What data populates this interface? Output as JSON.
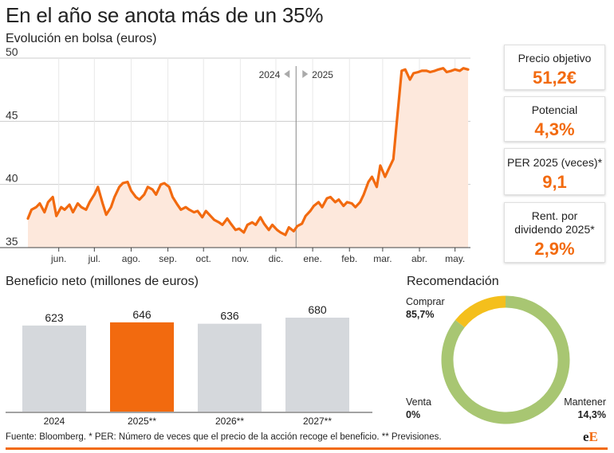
{
  "header": {
    "title": "En el año se anota más de un 35%",
    "subtitle": "Evolución en bolsa (euros)"
  },
  "cards": [
    {
      "label_lines": [
        "Precio objetivo"
      ],
      "value": "51,2€"
    },
    {
      "label_lines": [
        "Potencial"
      ],
      "value": "4,3%"
    },
    {
      "label_lines": [
        "PER 2025 (veces)*"
      ],
      "value": "9,1"
    },
    {
      "label_lines": [
        "Rent. por",
        "dividendo 2025*"
      ],
      "value": "2,9%"
    }
  ],
  "sections": {
    "profit_title": "Beneficio neto (millones de euros)",
    "recommendation_title": "Recomendación"
  },
  "footer": {
    "source": "Fuente: Bloomberg. * PER: Número de veces que el precio de la acción recoge el beneficio. ** Previsiones.",
    "logo_e1": "e",
    "logo_e2": "E"
  },
  "colors": {
    "accent": "#f26a0f",
    "area_fill": "#fde8dc",
    "bar_gray": "#d5d8dc",
    "donut_green": "#a8c672",
    "donut_yellow": "#f4bf1c"
  },
  "chart_data": [
    {
      "type": "area",
      "ylim": [
        35,
        50
      ],
      "yticks": [
        35,
        40,
        45,
        50
      ],
      "xlim": [
        "2024-05-20",
        "2025-05-28"
      ],
      "xticks": [
        {
          "label": "jun.",
          "date": "2024-06-15"
        },
        {
          "label": "jul.",
          "date": "2024-07-15"
        },
        {
          "label": "ago.",
          "date": "2024-08-15"
        },
        {
          "label": "sep.",
          "date": "2024-09-15"
        },
        {
          "label": "oct.",
          "date": "2024-10-15"
        },
        {
          "label": "nov.",
          "date": "2024-11-15"
        },
        {
          "label": "dic.",
          "date": "2024-12-15"
        },
        {
          "label": "ene.",
          "date": "2025-01-15"
        },
        {
          "label": "feb.",
          "date": "2025-02-15"
        },
        {
          "label": "mar.",
          "date": "2025-03-15"
        },
        {
          "label": "abr.",
          "date": "2025-04-15"
        },
        {
          "label": "may.",
          "date": "2025-05-15"
        }
      ],
      "year_divider": {
        "date": "2025-01-01",
        "left_label": "2024",
        "right_label": "2025"
      },
      "x": [
        "2024-05-20",
        "2024-05-23",
        "2024-05-27",
        "2024-05-30",
        "2024-06-03",
        "2024-06-06",
        "2024-06-10",
        "2024-06-13",
        "2024-06-17",
        "2024-06-20",
        "2024-06-24",
        "2024-06-27",
        "2024-07-01",
        "2024-07-04",
        "2024-07-08",
        "2024-07-11",
        "2024-07-15",
        "2024-07-18",
        "2024-07-22",
        "2024-07-25",
        "2024-07-29",
        "2024-08-01",
        "2024-08-05",
        "2024-08-08",
        "2024-08-12",
        "2024-08-15",
        "2024-08-19",
        "2024-08-22",
        "2024-08-26",
        "2024-08-29",
        "2024-09-02",
        "2024-09-05",
        "2024-09-09",
        "2024-09-12",
        "2024-09-16",
        "2024-09-19",
        "2024-09-23",
        "2024-09-26",
        "2024-09-30",
        "2024-10-03",
        "2024-10-07",
        "2024-10-10",
        "2024-10-14",
        "2024-10-17",
        "2024-10-21",
        "2024-10-24",
        "2024-10-28",
        "2024-10-31",
        "2024-11-04",
        "2024-11-07",
        "2024-11-11",
        "2024-11-14",
        "2024-11-18",
        "2024-11-21",
        "2024-11-25",
        "2024-11-28",
        "2024-12-02",
        "2024-12-05",
        "2024-12-09",
        "2024-12-12",
        "2024-12-16",
        "2024-12-19",
        "2024-12-23",
        "2024-12-26",
        "2024-12-30",
        "2025-01-02",
        "2025-01-06",
        "2025-01-09",
        "2025-01-13",
        "2025-01-16",
        "2025-01-20",
        "2025-01-23",
        "2025-01-27",
        "2025-01-30",
        "2025-02-03",
        "2025-02-06",
        "2025-02-10",
        "2025-02-13",
        "2025-02-17",
        "2025-02-20",
        "2025-02-24",
        "2025-02-27",
        "2025-03-03",
        "2025-03-06",
        "2025-03-10",
        "2025-03-13",
        "2025-03-17",
        "2025-03-20",
        "2025-03-24",
        "2025-03-27",
        "2025-03-31",
        "2025-04-03",
        "2025-04-07",
        "2025-04-10",
        "2025-04-14",
        "2025-04-17",
        "2025-04-21",
        "2025-04-24",
        "2025-04-28",
        "2025-05-01",
        "2025-05-05",
        "2025-05-08",
        "2025-05-12",
        "2025-05-15",
        "2025-05-19",
        "2025-05-22",
        "2025-05-26"
      ],
      "y": [
        37.3,
        38.0,
        38.2,
        38.5,
        37.8,
        38.6,
        39.0,
        37.5,
        38.2,
        38.0,
        38.4,
        37.8,
        38.5,
        38.2,
        38.0,
        38.6,
        39.2,
        39.8,
        38.5,
        37.6,
        38.2,
        39.0,
        39.8,
        40.1,
        40.2,
        39.5,
        39.0,
        38.8,
        39.2,
        39.8,
        39.6,
        39.2,
        40.0,
        40.1,
        39.8,
        39.0,
        38.4,
        38.0,
        38.2,
        38.0,
        37.8,
        37.9,
        37.4,
        37.9,
        37.5,
        37.2,
        37.0,
        36.8,
        37.3,
        36.9,
        36.4,
        36.5,
        36.2,
        36.8,
        37.0,
        36.8,
        37.4,
        36.9,
        36.4,
        36.8,
        36.4,
        36.2,
        36.0,
        36.6,
        36.3,
        36.7,
        36.9,
        37.5,
        37.9,
        38.3,
        38.6,
        38.2,
        38.9,
        39.0,
        38.6,
        38.8,
        38.3,
        38.6,
        38.5,
        38.2,
        38.6,
        39.2,
        40.2,
        40.6,
        39.8,
        41.5,
        40.6,
        41.2,
        42.0,
        45.0,
        49.0,
        49.1,
        48.3,
        48.8,
        48.9,
        49.0,
        49.0,
        48.9,
        49.0,
        49.1,
        49.2,
        48.9,
        49.0,
        49.1,
        49.0,
        49.2,
        49.1
      ]
    },
    {
      "type": "bar",
      "categories": [
        "2024",
        "2025**",
        "2026**",
        "2027**"
      ],
      "values": [
        623,
        646,
        636,
        680
      ],
      "value_labels": [
        "623",
        "646",
        "636",
        "680"
      ],
      "highlight_index": 1
    },
    {
      "type": "pie",
      "style": "donut",
      "labels": [
        {
          "name": "Comprar",
          "value_label": "85,7%"
        },
        {
          "name": "Mantener",
          "value_label": "14,3%"
        },
        {
          "name": "Venta",
          "value_label": "0%"
        }
      ],
      "values": [
        85.7,
        14.3,
        0
      ]
    }
  ]
}
